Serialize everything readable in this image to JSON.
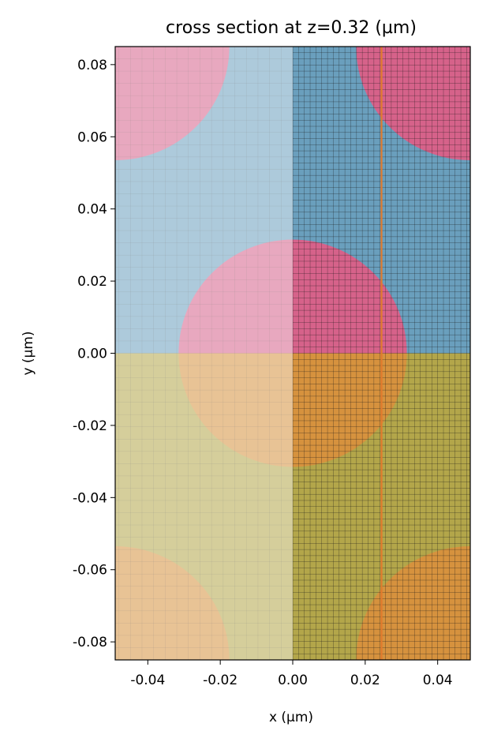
{
  "chart_data": {
    "type": "heatmap",
    "title": "cross section at z=0.32 (µm)",
    "xlabel": "x (µm)",
    "ylabel": "y (µm)",
    "xlim": [
      -0.049,
      0.049
    ],
    "ylim": [
      -0.085,
      0.085
    ],
    "x_ticks": [
      {
        "value": -0.04,
        "label": "-0.04"
      },
      {
        "value": -0.02,
        "label": "-0.02"
      },
      {
        "value": 0.0,
        "label": "0.00"
      },
      {
        "value": 0.02,
        "label": "0.02"
      },
      {
        "value": 0.04,
        "label": "0.04"
      }
    ],
    "y_ticks": [
      {
        "value": 0.08,
        "label": "0.08"
      },
      {
        "value": 0.06,
        "label": "0.06"
      },
      {
        "value": 0.04,
        "label": "0.04"
      },
      {
        "value": 0.02,
        "label": "0.02"
      },
      {
        "value": 0.0,
        "label": "0.00"
      },
      {
        "value": -0.02,
        "label": "-0.02"
      },
      {
        "value": -0.04,
        "label": "-0.04"
      },
      {
        "value": -0.06,
        "label": "-0.06"
      },
      {
        "value": -0.08,
        "label": "-0.08"
      }
    ],
    "colors": {
      "background_medium": "#6a9fbd",
      "circle_medium": "#d6628a",
      "lower_region": "#b3a64a",
      "lower_circle": "#d6923e",
      "grid_line": "#1a1a1a",
      "source_line": "#e07a2c",
      "mirror_overlay": "#ffffff"
    },
    "regions": [
      {
        "name": "upper-background",
        "x": [
          -0.049,
          0.049
        ],
        "y": [
          0.0,
          0.085
        ]
      },
      {
        "name": "lower-background",
        "x": [
          -0.049,
          0.049
        ],
        "y": [
          -0.085,
          0.0
        ]
      }
    ],
    "circles": [
      {
        "cx": 0.0,
        "cy": 0.0,
        "r": 0.0315
      },
      {
        "cx": 0.049,
        "cy": 0.085,
        "r": 0.0315
      },
      {
        "cx": -0.049,
        "cy": 0.085,
        "r": 0.0315
      },
      {
        "cx": 0.049,
        "cy": -0.085,
        "r": 0.0315
      },
      {
        "cx": -0.049,
        "cy": -0.085,
        "r": 0.0315
      }
    ],
    "symmetry_overlay": {
      "x": [
        -0.049,
        0.0
      ],
      "opacity": 0.45
    },
    "grid": {
      "on": true,
      "dx": 0.0016,
      "dy": 0.0017,
      "x_range": [
        0.0,
        0.049
      ]
    },
    "vertical_line": {
      "x": 0.0245,
      "y": [
        -0.085,
        0.085
      ]
    }
  }
}
